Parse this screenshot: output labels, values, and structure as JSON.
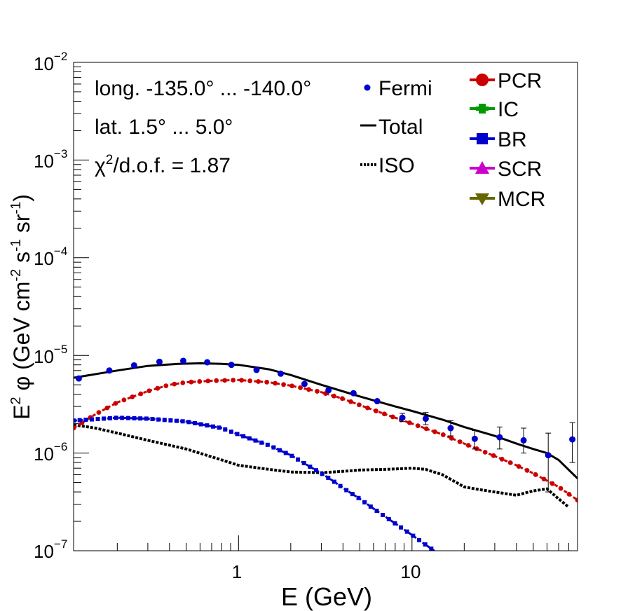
{
  "chart_data": {
    "type": "scatter",
    "xscale": "log",
    "yscale": "log",
    "xlim": [
      0.112,
      90
    ],
    "ylim": [
      1e-07,
      0.01
    ],
    "xlabel": "E (GeV)",
    "ylabel": {
      "prefix": "E",
      "sup1": "2",
      "phi": " φ (GeV cm",
      "sup2": "-2",
      "mid": " s",
      "sup3": "-1",
      "mid2": " sr",
      "sup4": "-1",
      "suffix": ")"
    },
    "x_tick_labels": [
      {
        "value": 1,
        "label": "1"
      },
      {
        "value": 10,
        "label": "10"
      }
    ],
    "y_tick_labels": [
      {
        "value": 1e-07,
        "base": "10",
        "exp": "−7"
      },
      {
        "value": 1e-06,
        "base": "10",
        "exp": "−6"
      },
      {
        "value": 1e-05,
        "base": "10",
        "exp": "−5"
      },
      {
        "value": 0.0001,
        "base": "10",
        "exp": "−4"
      },
      {
        "value": 0.001,
        "base": "10",
        "exp": "−3"
      },
      {
        "value": 0.01,
        "base": "10",
        "exp": "−2"
      }
    ],
    "annotations": {
      "longitude": "long. -135.0° ... -140.0°",
      "latitude": "lat. 1.5° ... 5.0°",
      "chi_prefix": "χ",
      "chi_sup": "2",
      "chi_rest": "/d.o.f. = 1.87"
    },
    "legend": [
      {
        "key": "fermi",
        "label": "Fermi",
        "marker": "dot",
        "color": "#0000cc"
      },
      {
        "key": "total",
        "label": "Total",
        "marker": "line",
        "color": "#000000"
      },
      {
        "key": "iso",
        "label": "ISO",
        "marker": "dotted",
        "color": "#000000"
      },
      {
        "key": "pcr",
        "label": "PCR",
        "marker": "circle",
        "color": "#cc0000"
      },
      {
        "key": "ic",
        "label": "IC",
        "marker": "cross",
        "color": "#009900"
      },
      {
        "key": "br",
        "label": "BR",
        "marker": "square",
        "color": "#0000cc"
      },
      {
        "key": "scr",
        "label": "SCR",
        "marker": "triangle-up",
        "color": "#cc00cc"
      },
      {
        "key": "mcr",
        "label": "MCR",
        "marker": "triangle-down",
        "color": "#666600"
      }
    ],
    "fermi": {
      "color": "#0000cc",
      "points": [
        {
          "x": 0.12,
          "y": 5.8e-06
        },
        {
          "x": 0.18,
          "y": 7e-06
        },
        {
          "x": 0.25,
          "y": 7.9e-06
        },
        {
          "x": 0.35,
          "y": 8.6e-06
        },
        {
          "x": 0.48,
          "y": 8.8e-06
        },
        {
          "x": 0.66,
          "y": 8.5e-06
        },
        {
          "x": 0.91,
          "y": 8e-06
        },
        {
          "x": 1.27,
          "y": 7.1e-06
        },
        {
          "x": 1.75,
          "y": 6.5e-06
        },
        {
          "x": 2.4,
          "y": 5.1e-06
        },
        {
          "x": 3.3,
          "y": 4.4e-06
        },
        {
          "x": 4.6,
          "y": 4.1e-06
        },
        {
          "x": 6.3,
          "y": 3.4e-06
        },
        {
          "x": 8.8,
          "y": 2.3e-06,
          "ylo": 2.1e-06,
          "yhi": 2.55e-06
        },
        {
          "x": 12.0,
          "y": 2.25e-06,
          "ylo": 1.95e-06,
          "yhi": 2.6e-06
        },
        {
          "x": 16.7,
          "y": 1.8e-06,
          "ylo": 1.5e-06,
          "yhi": 2.15e-06
        },
        {
          "x": 23.0,
          "y": 1.4e-06,
          "ylo": 1.1e-06,
          "yhi": 1.7e-06
        },
        {
          "x": 32.0,
          "y": 1.45e-06,
          "ylo": 1.1e-06,
          "yhi": 1.85e-06
        },
        {
          "x": 44.0,
          "y": 1.35e-06,
          "ylo": 1e-06,
          "yhi": 1.8e-06
        },
        {
          "x": 61.0,
          "y": 9.5e-07,
          "ylo": 4e-07,
          "yhi": 1.6e-06
        },
        {
          "x": 84.0,
          "y": 1.38e-06,
          "ylo": 8e-07,
          "yhi": 2.05e-06
        }
      ]
    },
    "series": [
      {
        "name": "Total",
        "style": "solid",
        "color": "#000000",
        "x": [
          0.112,
          0.2,
          0.3,
          0.45,
          0.6,
          0.8,
          1.0,
          1.5,
          2.0,
          3.0,
          5.0,
          8.0,
          10.0,
          15.0,
          20.0,
          30.0,
          40.0,
          50.0,
          60.0,
          70.0,
          90.0
        ],
        "y": [
          5.9e-06,
          7e-06,
          7.8e-06,
          8.2e-06,
          8.3e-06,
          8.2e-06,
          8e-06,
          7.2e-06,
          6.3e-06,
          5e-06,
          3.8e-06,
          3e-06,
          2.7e-06,
          2.2e-06,
          1.85e-06,
          1.5e-06,
          1.25e-06,
          1.1e-06,
          1e-06,
          8.5e-07,
          5.5e-07
        ]
      },
      {
        "name": "ISO",
        "style": "dotted",
        "color": "#000000",
        "x": [
          0.112,
          0.15,
          0.2,
          0.3,
          0.5,
          0.8,
          1.0,
          1.5,
          2.0,
          3.0,
          4.0,
          5.0,
          7.0,
          10.0,
          12.0,
          15.0,
          20.0,
          25.0,
          30.0,
          40.0,
          50.0,
          60.0,
          70.0,
          80.0
        ],
        "y": [
          1.95e-06,
          1.8e-06,
          1.6e-06,
          1.35e-06,
          1.1e-06,
          8.5e-07,
          7.5e-07,
          6.8e-07,
          6.4e-07,
          6.3e-07,
          6.5e-07,
          6.7e-07,
          6.8e-07,
          7e-07,
          6.8e-07,
          6e-07,
          4.5e-07,
          4.2e-07,
          4e-07,
          3.7e-07,
          4.1e-07,
          4.3e-07,
          3.4e-07,
          2.8e-07
        ]
      },
      {
        "name": "PCR",
        "style": "circle",
        "color": "#cc0000",
        "x": [
          0.112,
          0.15,
          0.2,
          0.3,
          0.4,
          0.5,
          0.7,
          1.0,
          1.5,
          2.0,
          3.0,
          4.0,
          5.0,
          7.0,
          10.0,
          15.0,
          20.0,
          30.0,
          40.0,
          50.0,
          70.0,
          90.0
        ],
        "y": [
          1.8e-06,
          2.5e-06,
          3.3e-06,
          4.3e-06,
          5e-06,
          5.3e-06,
          5.5e-06,
          5.6e-06,
          5.3e-06,
          4.9e-06,
          4.2e-06,
          3.6e-06,
          3.1e-06,
          2.5e-06,
          2e-06,
          1.55e-06,
          1.25e-06,
          9.3e-07,
          7.5e-07,
          6.2e-07,
          4.5e-07,
          3.3e-07
        ]
      },
      {
        "name": "BR",
        "style": "square",
        "color": "#0000cc",
        "x": [
          0.112,
          0.2,
          0.3,
          0.5,
          0.8,
          1.0,
          1.5,
          2.0,
          2.5,
          3.0,
          3.5,
          4.0,
          5.0,
          6.0,
          8.0,
          10.0,
          12.0,
          14.0
        ],
        "y": [
          2.15e-06,
          2.3e-06,
          2.25e-06,
          2.1e-06,
          1.8e-06,
          1.55e-06,
          1.2e-06,
          9.5e-07,
          7.5e-07,
          6.2e-07,
          5.2e-07,
          4.4e-07,
          3.4e-07,
          2.7e-07,
          1.9e-07,
          1.45e-07,
          1.15e-07,
          9.5e-08
        ]
      },
      {
        "name": "IC",
        "style": "cross",
        "color": "#009900",
        "x": [],
        "y": []
      },
      {
        "name": "SCR",
        "style": "triangle-up",
        "color": "#cc00cc",
        "x": [],
        "y": []
      },
      {
        "name": "MCR",
        "style": "triangle-down",
        "color": "#666600",
        "x": [],
        "y": []
      }
    ]
  }
}
